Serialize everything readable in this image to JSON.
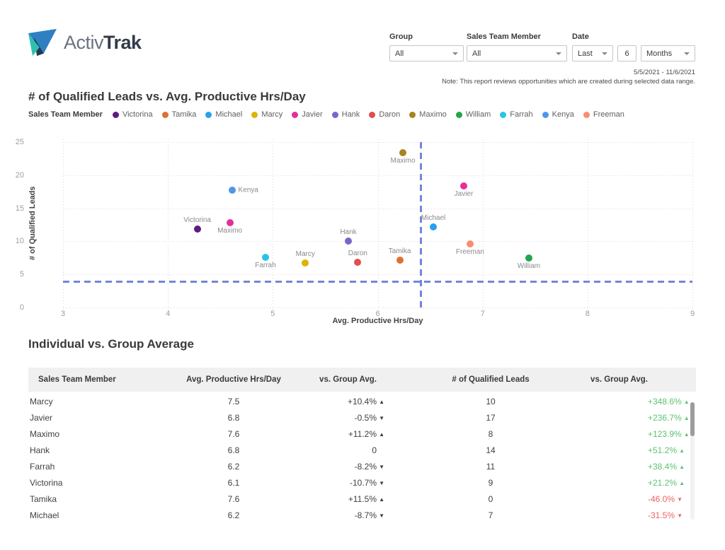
{
  "brand": {
    "light": "Activ",
    "bold": "Trak"
  },
  "filters": {
    "group": {
      "label": "Group",
      "value": "All"
    },
    "member": {
      "label": "Sales Team Member",
      "value": "All"
    },
    "date": {
      "label": "Date",
      "value": "Last",
      "count": "6",
      "unit": "Months"
    },
    "date_range": "5/5/2021 - 11/6/2021",
    "note": "Note: This report reviews opportunities which are created during selected data range."
  },
  "chart_data": {
    "type": "scatter",
    "title": "# of Qualified Leads vs. Avg. Productive Hrs/Day",
    "xlabel": "Avg. Productive Hrs/Day",
    "ylabel": "# of Qualified Leads",
    "xlim": [
      3,
      9
    ],
    "ylim": [
      0,
      25
    ],
    "x_ticks": [
      3,
      4,
      5,
      6,
      7,
      8,
      9
    ],
    "y_ticks": [
      0,
      5,
      10,
      15,
      20,
      25
    ],
    "grid": true,
    "legend_position": "top",
    "legend_title": "Sales Team Member",
    "legend": [
      {
        "name": "Victorina",
        "color": "#5C1D80"
      },
      {
        "name": "Tamika",
        "color": "#E06F32"
      },
      {
        "name": "Michael",
        "color": "#29A0EC"
      },
      {
        "name": "Marcy",
        "color": "#DDB306"
      },
      {
        "name": "Javier",
        "color": "#E52E9C"
      },
      {
        "name": "Hank",
        "color": "#7D64C8"
      },
      {
        "name": "Daron",
        "color": "#E04E50"
      },
      {
        "name": "Maximo",
        "color": "#A8831F"
      },
      {
        "name": "William",
        "color": "#22A64B"
      },
      {
        "name": "Farrah",
        "color": "#27C4EA"
      },
      {
        "name": "Kenya",
        "color": "#4E97E8"
      },
      {
        "name": "Freeman",
        "color": "#F98D70"
      }
    ],
    "points": [
      {
        "label": "Kenya",
        "x": 4.61,
        "y": 17.7,
        "color": "#4E97E8",
        "label_pos": "right"
      },
      {
        "label": "Victorina",
        "x": 4.28,
        "y": 11.9,
        "color": "#5C1D80",
        "label_pos": "top"
      },
      {
        "label": "Maximo",
        "x": 4.59,
        "y": 12.8,
        "color": "#E52E9C",
        "label_pos": "bottom"
      },
      {
        "label": "Farrah",
        "x": 4.93,
        "y": 7.6,
        "color": "#27C4EA",
        "label_pos": "bottom"
      },
      {
        "label": "Marcy",
        "x": 5.31,
        "y": 6.7,
        "color": "#DDB306",
        "label_pos": "top"
      },
      {
        "label": "Hank",
        "x": 5.72,
        "y": 10.0,
        "color": "#7D64C8",
        "label_pos": "top"
      },
      {
        "label": "Daron",
        "x": 5.81,
        "y": 6.8,
        "color": "#E04E50",
        "label_pos": "top"
      },
      {
        "label": "Maximo",
        "x": 6.24,
        "y": 23.4,
        "color": "#A8831F",
        "label_pos": "bottom"
      },
      {
        "label": "Javier",
        "x": 6.82,
        "y": 18.4,
        "color": "#E52E9C",
        "label_pos": "bottom"
      },
      {
        "label": "Michael",
        "x": 6.53,
        "y": 12.2,
        "color": "#29A0EC",
        "label_pos": "top"
      },
      {
        "label": "Freeman",
        "x": 6.88,
        "y": 9.6,
        "color": "#F98D70",
        "label_pos": "bottom"
      },
      {
        "label": "Tamika",
        "x": 6.21,
        "y": 7.2,
        "color": "#E06F32",
        "label_pos": "top"
      },
      {
        "label": "William",
        "x": 7.44,
        "y": 7.5,
        "color": "#22A64B",
        "label_pos": "bottom"
      }
    ],
    "reference_lines": {
      "x": 6.41,
      "y": 4.0,
      "style": "dashed",
      "color": "#7385DB"
    }
  },
  "table": {
    "title": "Individual vs. Group Average",
    "columns": [
      "Sales Team Member",
      "Avg. Productive Hrs/Day",
      "vs. Group Avg.",
      "# of Qualified Leads",
      "vs. Group Avg."
    ],
    "rows": [
      {
        "member": "Marcy",
        "hrs": "7.5",
        "hrs_vs": "+10.4%",
        "hrs_dir": "up",
        "leads": "10",
        "leads_vs": "+348.6%",
        "leads_dir": "up"
      },
      {
        "member": "Javier",
        "hrs": "6.8",
        "hrs_vs": "-0.5%",
        "hrs_dir": "down",
        "leads": "17",
        "leads_vs": "+236.7%",
        "leads_dir": "up"
      },
      {
        "member": "Maximo",
        "hrs": "7.6",
        "hrs_vs": "+11.2%",
        "hrs_dir": "up",
        "leads": "8",
        "leads_vs": "+123.9%",
        "leads_dir": "up"
      },
      {
        "member": "Hank",
        "hrs": "6.8",
        "hrs_vs": "0",
        "hrs_dir": "none",
        "leads": "14",
        "leads_vs": "+51.2%",
        "leads_dir": "up"
      },
      {
        "member": "Farrah",
        "hrs": "6.2",
        "hrs_vs": "-8.2%",
        "hrs_dir": "down",
        "leads": "11",
        "leads_vs": "+38.4%",
        "leads_dir": "up"
      },
      {
        "member": "Victorina",
        "hrs": "6.1",
        "hrs_vs": "-10.7%",
        "hrs_dir": "down",
        "leads": "9",
        "leads_vs": "+21.2%",
        "leads_dir": "up"
      },
      {
        "member": "Tamika",
        "hrs": "7.6",
        "hrs_vs": "+11.5%",
        "hrs_dir": "up",
        "leads": "0",
        "leads_vs": "-46.0%",
        "leads_dir": "down"
      },
      {
        "member": "Michael",
        "hrs": "6.2",
        "hrs_vs": "-8.7%",
        "hrs_dir": "down",
        "leads": "7",
        "leads_vs": "-31.5%",
        "leads_dir": "down"
      }
    ]
  },
  "colors": {
    "green": "#5DC370",
    "red": "#EE6262",
    "dark_arrow": "#3A3A3A",
    "reference": "#7385DB"
  }
}
